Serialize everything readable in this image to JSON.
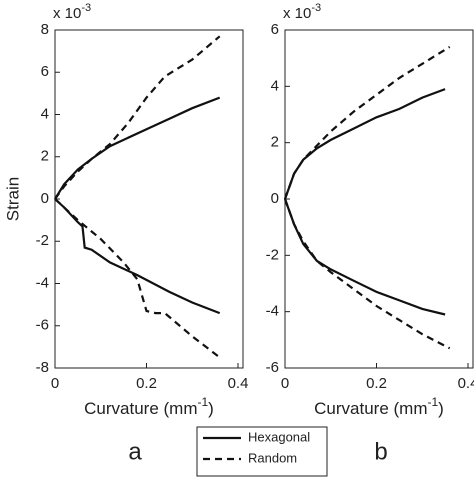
{
  "chart_data": [
    {
      "type": "line",
      "panel_label": "a",
      "y_label": "Strain",
      "y_scale_label": "x 10",
      "y_scale_exponent": "-3",
      "x_label": "Curvature (mm",
      "x_label_exponent": "-1",
      "x_label_end": ")",
      "xlim": [
        0,
        0.4
      ],
      "xticks": [
        0,
        0.2,
        0.4
      ],
      "ylim": [
        -8,
        8
      ],
      "yticks": [
        -8,
        -6,
        -4,
        -2,
        0,
        2,
        4,
        6,
        8
      ],
      "series": [
        {
          "name": "Hexagonal",
          "color": "#111111",
          "dash": false,
          "x": [
            0,
            0.02,
            0.05,
            0.08,
            0.12,
            0.18,
            0.25,
            0.3,
            0.36,
            null,
            0,
            0.02,
            0.05,
            0.06,
            0.065,
            0.08,
            0.12,
            0.18,
            0.25,
            0.3,
            0.36
          ],
          "values": [
            0,
            0.7,
            1.4,
            1.9,
            2.5,
            3.1,
            3.8,
            4.3,
            4.8,
            null,
            0,
            -0.4,
            -1.1,
            -1.3,
            -2.3,
            -2.4,
            -3.0,
            -3.6,
            -4.4,
            -4.9,
            -5.4
          ]
        },
        {
          "name": "Random",
          "color": "#111111",
          "dash": true,
          "x": [
            0,
            0.02,
            0.05,
            0.08,
            0.12,
            0.16,
            0.2,
            0.24,
            0.3,
            0.36,
            null,
            0,
            0.05,
            0.1,
            0.15,
            0.18,
            0.2,
            0.22,
            0.24,
            0.3,
            0.36
          ],
          "values": [
            0,
            0.6,
            1.3,
            1.9,
            2.6,
            3.6,
            4.8,
            5.8,
            6.6,
            7.7,
            null,
            0,
            -1.0,
            -1.9,
            -3.0,
            -3.8,
            -5.3,
            -5.4,
            -5.4,
            -6.5,
            -7.5
          ]
        }
      ]
    },
    {
      "type": "line",
      "panel_label": "b",
      "y_scale_label": "x 10",
      "y_scale_exponent": "-3",
      "x_label": "Curvature (mm",
      "x_label_exponent": "-1",
      "x_label_end": ")",
      "xlim": [
        0,
        0.4
      ],
      "xticks": [
        0,
        0.2,
        0.4
      ],
      "ylim": [
        -6,
        6
      ],
      "yticks": [
        -6,
        -4,
        -2,
        0,
        2,
        4,
        6
      ],
      "series": [
        {
          "name": "Hexagonal",
          "color": "#111111",
          "dash": false,
          "x": [
            0,
            0.02,
            0.04,
            0.07,
            0.1,
            0.15,
            0.2,
            0.25,
            0.3,
            0.35,
            null,
            0,
            0.02,
            0.04,
            0.07,
            0.1,
            0.15,
            0.2,
            0.25,
            0.3,
            0.35
          ],
          "values": [
            0,
            0.9,
            1.4,
            1.8,
            2.1,
            2.5,
            2.9,
            3.2,
            3.6,
            3.9,
            null,
            0,
            -0.9,
            -1.6,
            -2.2,
            -2.5,
            -2.9,
            -3.3,
            -3.6,
            -3.9,
            -4.1
          ]
        },
        {
          "name": "Random",
          "color": "#111111",
          "dash": true,
          "x": [
            0,
            0.02,
            0.04,
            0.07,
            0.1,
            0.15,
            0.2,
            0.25,
            0.3,
            0.36,
            null,
            0,
            0.02,
            0.04,
            0.07,
            0.1,
            0.15,
            0.2,
            0.25,
            0.3,
            0.36
          ],
          "values": [
            0,
            0.9,
            1.4,
            1.9,
            2.4,
            3.1,
            3.7,
            4.3,
            4.8,
            5.4,
            null,
            0,
            -0.9,
            -1.5,
            -2.2,
            -2.6,
            -3.2,
            -3.8,
            -4.3,
            -4.8,
            -5.3
          ]
        }
      ]
    }
  ]
}
